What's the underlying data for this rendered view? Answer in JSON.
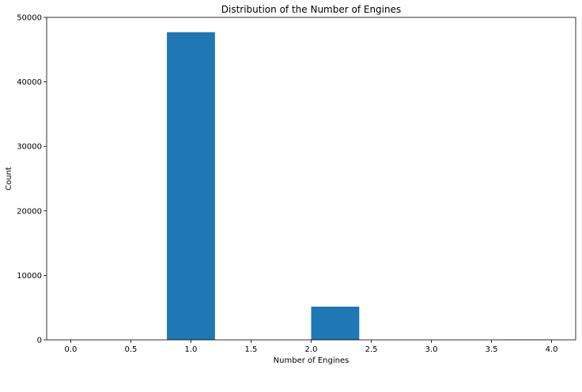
{
  "chart_data": {
    "type": "bar",
    "title": "Distribution of the Number of Engines",
    "xlabel": "Number of Engines",
    "ylabel": "Count",
    "xlim": [
      -0.2,
      4.2
    ],
    "ylim": [
      0,
      50000
    ],
    "xticks": [
      0.0,
      0.5,
      1.0,
      1.5,
      2.0,
      2.5,
      3.0,
      3.5,
      4.0
    ],
    "xtick_labels": [
      "0.0",
      "0.5",
      "1.0",
      "1.5",
      "2.0",
      "2.5",
      "3.0",
      "3.5",
      "4.0"
    ],
    "yticks": [
      0,
      10000,
      20000,
      30000,
      40000,
      50000
    ],
    "ytick_labels": [
      "0",
      "10000",
      "20000",
      "30000",
      "40000",
      "50000"
    ],
    "bin_edges": [
      0.0,
      0.4,
      0.8,
      1.2,
      1.6,
      2.0,
      2.4,
      2.8,
      3.2,
      3.6,
      4.0
    ],
    "values": [
      0,
      0,
      47700,
      0,
      0,
      5150,
      0,
      0,
      0,
      60
    ],
    "bar_color": "#1f77b4",
    "grid": false
  }
}
